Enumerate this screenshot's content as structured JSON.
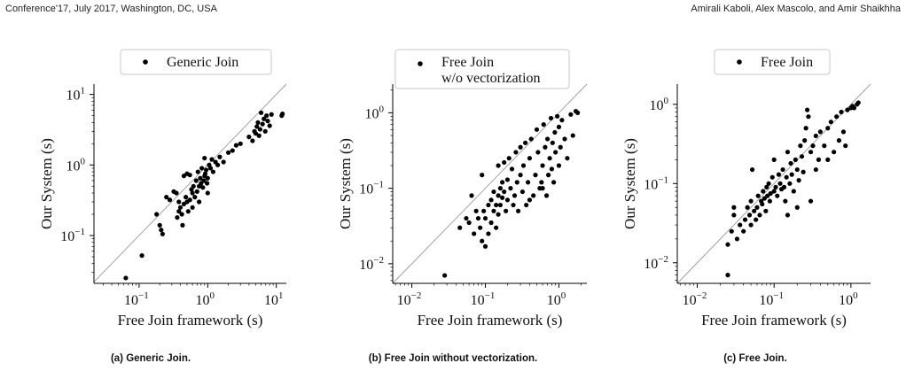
{
  "header": {
    "left": "Conference'17, July 2017, Washington, DC, USA",
    "right": "Amirali Kaboli, Alex Mascolo, and Amir Shaikhha"
  },
  "chart_data": [
    {
      "type": "scatter",
      "caption": "(a) Generic Join.",
      "xlabel": "Free Join framework (s)",
      "ylabel": "Our System (s)",
      "legend": [
        "Generic Join"
      ],
      "legend_position": "top",
      "xscale": "log",
      "yscale": "log",
      "xlim": [
        0.022,
        14
      ],
      "ylim": [
        0.021,
        14
      ],
      "xticks": [
        {
          "v": 0.1,
          "base": "10",
          "exp": "−1"
        },
        {
          "v": 1,
          "base": "10",
          "exp": "0"
        },
        {
          "v": 10,
          "base": "10",
          "exp": "1"
        }
      ],
      "yticks": [
        {
          "v": 0.1,
          "base": "10",
          "exp": "−1"
        },
        {
          "v": 1,
          "base": "10",
          "exp": "0"
        },
        {
          "v": 10,
          "base": "10",
          "exp": "1"
        }
      ],
      "diagonal": true,
      "points": [
        [
          0.064,
          0.025
        ],
        [
          0.11,
          0.052
        ],
        [
          0.18,
          0.2
        ],
        [
          0.2,
          0.14
        ],
        [
          0.21,
          0.12
        ],
        [
          0.22,
          0.105
        ],
        [
          0.25,
          0.35
        ],
        [
          0.28,
          0.32
        ],
        [
          0.32,
          0.42
        ],
        [
          0.35,
          0.4
        ],
        [
          0.38,
          0.3
        ],
        [
          0.4,
          0.25
        ],
        [
          0.42,
          0.2
        ],
        [
          0.43,
          0.14
        ],
        [
          0.45,
          0.28
        ],
        [
          0.48,
          0.35
        ],
        [
          0.5,
          0.3
        ],
        [
          0.52,
          0.22
        ],
        [
          0.55,
          0.32
        ],
        [
          0.58,
          0.45
        ],
        [
          0.6,
          0.4
        ],
        [
          0.62,
          0.5
        ],
        [
          0.65,
          0.35
        ],
        [
          0.68,
          0.6
        ],
        [
          0.7,
          0.42
        ],
        [
          0.72,
          0.8
        ],
        [
          0.75,
          0.5
        ],
        [
          0.78,
          0.65
        ],
        [
          0.8,
          0.55
        ],
        [
          0.82,
          0.9
        ],
        [
          0.85,
          0.48
        ],
        [
          0.88,
          0.6
        ],
        [
          0.9,
          0.7
        ],
        [
          0.92,
          0.75
        ],
        [
          0.95,
          0.85
        ],
        [
          0.98,
          0.55
        ],
        [
          1.0,
          0.65
        ],
        [
          1.05,
          1.0
        ],
        [
          1.1,
          0.9
        ],
        [
          1.15,
          1.2
        ],
        [
          1.2,
          0.8
        ],
        [
          1.3,
          1.1
        ],
        [
          1.4,
          1.0
        ],
        [
          1.5,
          1.3
        ],
        [
          1.7,
          1.1
        ],
        [
          2.0,
          1.5
        ],
        [
          2.3,
          1.6
        ],
        [
          2.6,
          1.9
        ],
        [
          3.0,
          2.0
        ],
        [
          4.0,
          2.5
        ],
        [
          4.5,
          2.2
        ],
        [
          4.8,
          3.0
        ],
        [
          5.0,
          2.8
        ],
        [
          5.2,
          3.5
        ],
        [
          5.4,
          4.0
        ],
        [
          5.6,
          2.6
        ],
        [
          5.8,
          3.2
        ],
        [
          6.0,
          5.5
        ],
        [
          6.3,
          3.8
        ],
        [
          6.6,
          4.5
        ],
        [
          6.9,
          3.0
        ],
        [
          7.2,
          5.0
        ],
        [
          7.5,
          4.2
        ],
        [
          8.0,
          3.6
        ],
        [
          8.5,
          5.2
        ],
        [
          12,
          5.0
        ],
        [
          12.3,
          5.3
        ],
        [
          0.45,
          0.7
        ],
        [
          0.5,
          0.75
        ],
        [
          0.55,
          0.72
        ],
        [
          0.9,
          1.25
        ],
        [
          1.0,
          0.4
        ],
        [
          0.75,
          0.3
        ],
        [
          0.6,
          0.25
        ],
        [
          0.36,
          0.18
        ],
        [
          0.38,
          0.22
        ]
      ]
    },
    {
      "type": "scatter",
      "caption": "(b) Free Join without vectorization.",
      "xlabel": "Free Join framework (s)",
      "ylabel": "Our System (s)",
      "legend": [
        "Free Join\nw/o vectorization"
      ],
      "legend_position": "top",
      "xscale": "log",
      "yscale": "log",
      "xlim": [
        0.0055,
        2.4
      ],
      "ylim": [
        0.0055,
        2.4
      ],
      "xticks": [
        {
          "v": 0.01,
          "base": "10",
          "exp": "−2"
        },
        {
          "v": 0.1,
          "base": "10",
          "exp": "−1"
        },
        {
          "v": 1,
          "base": "10",
          "exp": "0"
        }
      ],
      "yticks": [
        {
          "v": 0.01,
          "base": "10",
          "exp": "−2"
        },
        {
          "v": 0.1,
          "base": "10",
          "exp": "−1"
        },
        {
          "v": 1,
          "base": "10",
          "exp": "0"
        }
      ],
      "diagonal": true,
      "points": [
        [
          0.028,
          0.007
        ],
        [
          0.045,
          0.03
        ],
        [
          0.055,
          0.04
        ],
        [
          0.06,
          0.035
        ],
        [
          0.065,
          0.08
        ],
        [
          0.07,
          0.025
        ],
        [
          0.075,
          0.05
        ],
        [
          0.08,
          0.04
        ],
        [
          0.085,
          0.03
        ],
        [
          0.09,
          0.02
        ],
        [
          0.095,
          0.05
        ],
        [
          0.1,
          0.04
        ],
        [
          0.1,
          0.017
        ],
        [
          0.11,
          0.06
        ],
        [
          0.11,
          0.025
        ],
        [
          0.12,
          0.07
        ],
        [
          0.12,
          0.035
        ],
        [
          0.13,
          0.05
        ],
        [
          0.13,
          0.09
        ],
        [
          0.14,
          0.06
        ],
        [
          0.14,
          0.03
        ],
        [
          0.15,
          0.08
        ],
        [
          0.15,
          0.045
        ],
        [
          0.16,
          0.1
        ],
        [
          0.16,
          0.06
        ],
        [
          0.17,
          0.12
        ],
        [
          0.17,
          0.075
        ],
        [
          0.18,
          0.22
        ],
        [
          0.18,
          0.09
        ],
        [
          0.19,
          0.05
        ],
        [
          0.2,
          0.13
        ],
        [
          0.2,
          0.07
        ],
        [
          0.21,
          0.25
        ],
        [
          0.22,
          0.1
        ],
        [
          0.23,
          0.18
        ],
        [
          0.24,
          0.06
        ],
        [
          0.25,
          0.08
        ],
        [
          0.26,
          0.3
        ],
        [
          0.27,
          0.12
        ],
        [
          0.28,
          0.05
        ],
        [
          0.3,
          0.35
        ],
        [
          0.3,
          0.15
        ],
        [
          0.32,
          0.09
        ],
        [
          0.33,
          0.2
        ],
        [
          0.35,
          0.4
        ],
        [
          0.36,
          0.06
        ],
        [
          0.38,
          0.12
        ],
        [
          0.4,
          0.25
        ],
        [
          0.42,
          0.45
        ],
        [
          0.45,
          0.08
        ],
        [
          0.48,
          0.15
        ],
        [
          0.5,
          0.6
        ],
        [
          0.52,
          0.3
        ],
        [
          0.55,
          0.1
        ],
        [
          0.58,
          0.12
        ],
        [
          0.6,
          0.2
        ],
        [
          0.62,
          0.7
        ],
        [
          0.65,
          0.35
        ],
        [
          0.68,
          0.08
        ],
        [
          0.7,
          0.45
        ],
        [
          0.72,
          0.15
        ],
        [
          0.75,
          0.25
        ],
        [
          0.78,
          0.85
        ],
        [
          0.8,
          0.18
        ],
        [
          0.82,
          0.4
        ],
        [
          0.85,
          0.12
        ],
        [
          0.88,
          0.55
        ],
        [
          0.9,
          0.3
        ],
        [
          0.95,
          0.9
        ],
        [
          1.0,
          0.2
        ],
        [
          1.0,
          0.65
        ],
        [
          1.05,
          0.35
        ],
        [
          1.1,
          0.8
        ],
        [
          1.2,
          0.45
        ],
        [
          1.3,
          0.25
        ],
        [
          1.45,
          0.95
        ],
        [
          1.55,
          0.5
        ],
        [
          1.7,
          1.05
        ],
        [
          1.8,
          1.0
        ],
        [
          0.09,
          0.15
        ],
        [
          0.15,
          0.2
        ],
        [
          0.6,
          0.1
        ],
        [
          0.4,
          0.07
        ]
      ]
    },
    {
      "type": "scatter",
      "caption": "(c) Free Join.",
      "xlabel": "Free Join framework (s)",
      "ylabel": "Our System (s)",
      "legend": [
        "Free Join"
      ],
      "legend_position": "top",
      "xscale": "log",
      "yscale": "log",
      "xlim": [
        0.0055,
        1.8
      ],
      "ylim": [
        0.0055,
        1.8
      ],
      "xticks": [
        {
          "v": 0.01,
          "base": "10",
          "exp": "−2"
        },
        {
          "v": 0.1,
          "base": "10",
          "exp": "−1"
        },
        {
          "v": 1,
          "base": "10",
          "exp": "0"
        }
      ],
      "yticks": [
        {
          "v": 0.01,
          "base": "10",
          "exp": "−2"
        },
        {
          "v": 0.1,
          "base": "10",
          "exp": "−1"
        },
        {
          "v": 1,
          "base": "10",
          "exp": "0"
        }
      ],
      "diagonal": true,
      "points": [
        [
          0.025,
          0.007
        ],
        [
          0.025,
          0.017
        ],
        [
          0.028,
          0.025
        ],
        [
          0.03,
          0.04
        ],
        [
          0.03,
          0.05
        ],
        [
          0.033,
          0.02
        ],
        [
          0.036,
          0.03
        ],
        [
          0.04,
          0.025
        ],
        [
          0.042,
          0.035
        ],
        [
          0.045,
          0.05
        ],
        [
          0.048,
          0.04
        ],
        [
          0.05,
          0.03
        ],
        [
          0.05,
          0.06
        ],
        [
          0.052,
          0.15
        ],
        [
          0.055,
          0.045
        ],
        [
          0.058,
          0.035
        ],
        [
          0.06,
          0.05
        ],
        [
          0.062,
          0.07
        ],
        [
          0.065,
          0.04
        ],
        [
          0.068,
          0.06
        ],
        [
          0.07,
          0.055
        ],
        [
          0.072,
          0.08
        ],
        [
          0.075,
          0.065
        ],
        [
          0.078,
          0.045
        ],
        [
          0.08,
          0.09
        ],
        [
          0.082,
          0.07
        ],
        [
          0.085,
          0.1
        ],
        [
          0.088,
          0.06
        ],
        [
          0.09,
          0.075
        ],
        [
          0.095,
          0.12
        ],
        [
          0.1,
          0.08
        ],
        [
          0.1,
          0.2
        ],
        [
          0.105,
          0.09
        ],
        [
          0.11,
          0.07
        ],
        [
          0.115,
          0.13
        ],
        [
          0.12,
          0.1
        ],
        [
          0.125,
          0.085
        ],
        [
          0.13,
          0.15
        ],
        [
          0.135,
          0.09
        ],
        [
          0.14,
          0.06
        ],
        [
          0.145,
          0.12
        ],
        [
          0.15,
          0.25
        ],
        [
          0.16,
          0.1
        ],
        [
          0.165,
          0.18
        ],
        [
          0.17,
          0.13
        ],
        [
          0.18,
          0.08
        ],
        [
          0.19,
          0.2
        ],
        [
          0.2,
          0.15
        ],
        [
          0.21,
          0.11
        ],
        [
          0.22,
          0.3
        ],
        [
          0.23,
          0.22
        ],
        [
          0.24,
          0.14
        ],
        [
          0.25,
          0.35
        ],
        [
          0.26,
          0.5
        ],
        [
          0.27,
          0.85
        ],
        [
          0.28,
          0.7
        ],
        [
          0.3,
          0.06
        ],
        [
          0.3,
          0.25
        ],
        [
          0.32,
          0.3
        ],
        [
          0.35,
          0.4
        ],
        [
          0.38,
          0.2
        ],
        [
          0.4,
          0.45
        ],
        [
          0.45,
          0.3
        ],
        [
          0.5,
          0.5
        ],
        [
          0.55,
          0.6
        ],
        [
          0.6,
          0.25
        ],
        [
          0.65,
          0.7
        ],
        [
          0.7,
          0.35
        ],
        [
          0.75,
          0.8
        ],
        [
          0.8,
          0.45
        ],
        [
          0.85,
          0.3
        ],
        [
          0.9,
          0.85
        ],
        [
          1.0,
          0.9
        ],
        [
          1.05,
          0.95
        ],
        [
          1.1,
          0.9
        ],
        [
          1.2,
          1.0
        ],
        [
          1.25,
          1.05
        ],
        [
          0.35,
          0.15
        ],
        [
          0.5,
          0.2
        ],
        [
          0.15,
          0.04
        ],
        [
          0.2,
          0.05
        ]
      ]
    }
  ]
}
